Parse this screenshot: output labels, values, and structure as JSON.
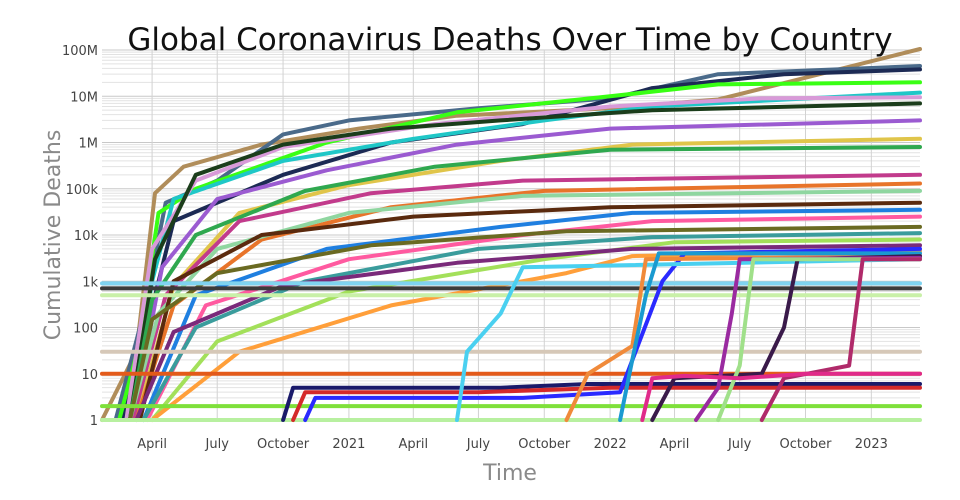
{
  "chart_data": {
    "type": "line",
    "title": "Global Coronavirus Deaths Over Time by Country",
    "xlabel": "Time",
    "ylabel": "Cumulative Deaths",
    "y_scale": "log",
    "ylim": [
      1,
      100000000
    ],
    "xlim": [
      "2020-01-22",
      "2023-03-10"
    ],
    "x_tick_labels": [
      "April",
      "July",
      "October",
      "2021",
      "April",
      "July",
      "October",
      "2022",
      "April",
      "July",
      "October",
      "2023"
    ],
    "x_tick_dates": [
      "2020-04-01",
      "2020-07-01",
      "2020-10-01",
      "2021-01-01",
      "2021-04-01",
      "2021-07-01",
      "2021-10-01",
      "2022-01-01",
      "2022-04-01",
      "2022-07-01",
      "2022-10-01",
      "2023-01-01"
    ],
    "y_tick_labels": [
      "1",
      "10",
      "100",
      "1k",
      "10k",
      "100k",
      "1M",
      "10M",
      "100M"
    ],
    "y_tick_values": [
      1,
      10,
      100,
      1000,
      10000,
      100000,
      1000000,
      10000000,
      100000000
    ],
    "grid": true,
    "legend": "none",
    "series": [
      {
        "color": "#b08d5a",
        "points": [
          [
            "2020-01-22",
            1
          ],
          [
            "2020-03-10",
            30
          ],
          [
            "2020-04-05",
            80000
          ],
          [
            "2020-05-15",
            300000
          ],
          [
            "2020-09-01",
            900000
          ],
          [
            "2021-01-15",
            2000000
          ],
          [
            "2021-06-01",
            3800000
          ],
          [
            "2022-01-01",
            5500000
          ],
          [
            "2022-06-01",
            8500000
          ],
          [
            "2023-03-10",
            105000000
          ]
        ]
      },
      {
        "color": "#4a6a8a",
        "points": [
          [
            "2020-02-10",
            1
          ],
          [
            "2020-03-20",
            200
          ],
          [
            "2020-04-20",
            50000
          ],
          [
            "2020-07-01",
            150000
          ],
          [
            "2020-10-01",
            1500000
          ],
          [
            "2021-01-01",
            3000000
          ],
          [
            "2021-07-01",
            5500000
          ],
          [
            "2022-01-01",
            9000000
          ],
          [
            "2022-06-01",
            30000000
          ],
          [
            "2023-03-10",
            45000000
          ]
        ]
      },
      {
        "color": "#1c2a54",
        "points": [
          [
            "2020-02-20",
            1
          ],
          [
            "2020-03-25",
            100
          ],
          [
            "2020-05-01",
            20000
          ],
          [
            "2020-10-01",
            200000
          ],
          [
            "2021-03-01",
            1000000
          ],
          [
            "2021-09-01",
            2500000
          ],
          [
            "2022-03-01",
            15000000
          ],
          [
            "2022-09-01",
            30000000
          ],
          [
            "2023-03-10",
            38000000
          ]
        ]
      },
      {
        "color": "#39ff14",
        "points": [
          [
            "2020-02-15",
            1
          ],
          [
            "2020-03-15",
            50
          ],
          [
            "2020-04-10",
            30000
          ],
          [
            "2020-06-01",
            100000
          ],
          [
            "2020-12-01",
            1000000
          ],
          [
            "2021-06-01",
            4500000
          ],
          [
            "2022-01-01",
            10000000
          ],
          [
            "2022-06-01",
            18000000
          ],
          [
            "2023-03-10",
            20000000
          ]
        ]
      },
      {
        "color": "#1fc7c7",
        "points": [
          [
            "2020-03-01",
            1
          ],
          [
            "2020-04-01",
            1000
          ],
          [
            "2020-05-01",
            60000
          ],
          [
            "2020-10-01",
            400000
          ],
          [
            "2021-04-01",
            1200000
          ],
          [
            "2021-10-01",
            3000000
          ],
          [
            "2022-03-01",
            6000000
          ],
          [
            "2023-03-10",
            12000000
          ]
        ]
      },
      {
        "color": "#d89ad8",
        "points": [
          [
            "2020-02-25",
            1
          ],
          [
            "2020-04-01",
            5000
          ],
          [
            "2020-06-01",
            150000
          ],
          [
            "2020-10-01",
            800000
          ],
          [
            "2021-05-01",
            2500000
          ],
          [
            "2022-01-01",
            6000000
          ],
          [
            "2022-08-01",
            9000000
          ],
          [
            "2023-03-10",
            9500000
          ]
        ]
      },
      {
        "color": "#1b3d1b",
        "points": [
          [
            "2020-03-01",
            1
          ],
          [
            "2020-04-05",
            3000
          ],
          [
            "2020-06-01",
            200000
          ],
          [
            "2020-10-01",
            900000
          ],
          [
            "2021-03-01",
            2000000
          ],
          [
            "2021-08-01",
            3000000
          ],
          [
            "2022-03-01",
            5000000
          ],
          [
            "2023-03-10",
            7000000
          ]
        ]
      },
      {
        "color": "#9b5bd1",
        "points": [
          [
            "2020-03-05",
            1
          ],
          [
            "2020-04-15",
            2000
          ],
          [
            "2020-07-01",
            60000
          ],
          [
            "2020-12-01",
            250000
          ],
          [
            "2021-06-01",
            900000
          ],
          [
            "2022-01-01",
            2000000
          ],
          [
            "2023-03-10",
            3000000
          ]
        ]
      },
      {
        "color": "#e0c54a",
        "points": [
          [
            "2020-03-10",
            1
          ],
          [
            "2020-05-01",
            800
          ],
          [
            "2020-08-01",
            30000
          ],
          [
            "2021-01-01",
            120000
          ],
          [
            "2021-08-01",
            400000
          ],
          [
            "2022-02-01",
            900000
          ],
          [
            "2023-03-10",
            1200000
          ]
        ]
      },
      {
        "color": "#2fa84f",
        "points": [
          [
            "2020-03-01",
            1
          ],
          [
            "2020-04-01",
            400
          ],
          [
            "2020-06-01",
            10000
          ],
          [
            "2020-11-01",
            90000
          ],
          [
            "2021-05-01",
            300000
          ],
          [
            "2022-01-01",
            700000
          ],
          [
            "2023-03-10",
            800000
          ]
        ]
      },
      {
        "color": "#c23b8c",
        "points": [
          [
            "2020-03-05",
            1
          ],
          [
            "2020-04-20",
            500
          ],
          [
            "2020-08-01",
            20000
          ],
          [
            "2021-02-01",
            80000
          ],
          [
            "2021-09-01",
            150000
          ],
          [
            "2023-03-10",
            200000
          ]
        ]
      },
      {
        "color": "#e8742a",
        "points": [
          [
            "2020-03-10",
            1
          ],
          [
            "2020-05-01",
            300
          ],
          [
            "2020-09-01",
            8000
          ],
          [
            "2021-03-01",
            40000
          ],
          [
            "2021-10-01",
            90000
          ],
          [
            "2023-03-10",
            130000
          ]
        ]
      },
      {
        "color": "#8fd6a0",
        "points": [
          [
            "2020-03-01",
            1
          ],
          [
            "2020-04-10",
            200
          ],
          [
            "2020-07-01",
            5000
          ],
          [
            "2021-01-01",
            30000
          ],
          [
            "2021-09-01",
            70000
          ],
          [
            "2023-03-10",
            90000
          ]
        ]
      },
      {
        "color": "#5a2a0e",
        "points": [
          [
            "2020-03-15",
            1
          ],
          [
            "2020-05-01",
            1000
          ],
          [
            "2020-09-01",
            10000
          ],
          [
            "2021-04-01",
            25000
          ],
          [
            "2022-01-01",
            40000
          ],
          [
            "2023-03-10",
            50000
          ]
        ]
      },
      {
        "color": "#1f7fe0",
        "points": [
          [
            "2020-03-20",
            1
          ],
          [
            "2020-06-01",
            500
          ],
          [
            "2020-12-01",
            5000
          ],
          [
            "2021-08-01",
            15000
          ],
          [
            "2022-02-01",
            30000
          ],
          [
            "2023-03-10",
            35000
          ]
        ]
      },
      {
        "color": "#ff5aa0",
        "points": [
          [
            "2020-03-25",
            1
          ],
          [
            "2020-06-15",
            300
          ],
          [
            "2021-01-01",
            3000
          ],
          [
            "2021-09-01",
            10000
          ],
          [
            "2022-03-01",
            20000
          ],
          [
            "2023-03-10",
            25000
          ]
        ]
      },
      {
        "color": "#6a6a22",
        "points": [
          [
            "2020-03-01",
            1
          ],
          [
            "2020-04-01",
            150
          ],
          [
            "2020-07-01",
            1500
          ],
          [
            "2021-02-01",
            6000
          ],
          [
            "2021-11-01",
            12000
          ],
          [
            "2023-03-10",
            15000
          ]
        ]
      },
      {
        "color": "#3a9c9c",
        "points": [
          [
            "2020-03-20",
            1
          ],
          [
            "2020-06-01",
            100
          ],
          [
            "2020-11-01",
            1000
          ],
          [
            "2021-07-01",
            5000
          ],
          [
            "2022-03-01",
            9000
          ],
          [
            "2023-03-10",
            11000
          ]
        ]
      },
      {
        "color": "#a3e05a",
        "points": [
          [
            "2020-04-01",
            1
          ],
          [
            "2020-07-01",
            50
          ],
          [
            "2021-01-01",
            600
          ],
          [
            "2021-10-01",
            3000
          ],
          [
            "2022-04-01",
            7000
          ],
          [
            "2023-03-10",
            8000
          ]
        ]
      },
      {
        "color": "#7a2a7a",
        "points": [
          [
            "2020-03-10",
            1
          ],
          [
            "2020-05-01",
            80
          ],
          [
            "2020-10-01",
            800
          ],
          [
            "2021-06-01",
            2500
          ],
          [
            "2022-02-01",
            5000
          ],
          [
            "2023-03-10",
            6000
          ]
        ]
      },
      {
        "color": "#ff9f3a",
        "points": [
          [
            "2020-04-01",
            1
          ],
          [
            "2020-08-01",
            30
          ],
          [
            "2021-03-01",
            300
          ],
          [
            "2021-11-01",
            1500
          ],
          [
            "2022-02-01",
            3500
          ],
          [
            "2023-03-10",
            4500
          ]
        ]
      },
      {
        "color": "#3b3b3b",
        "points": [
          [
            "2020-01-22",
            700
          ],
          [
            "2023-03-10",
            700
          ]
        ]
      },
      {
        "color": "#7fd3f0",
        "points": [
          [
            "2020-01-22",
            900
          ],
          [
            "2023-03-10",
            900
          ]
        ]
      },
      {
        "color": "#c9f0a8",
        "points": [
          [
            "2020-01-22",
            500
          ],
          [
            "2023-03-10",
            500
          ]
        ]
      },
      {
        "color": "#d6c8b8",
        "points": [
          [
            "2020-01-22",
            30
          ],
          [
            "2023-03-10",
            30
          ]
        ]
      },
      {
        "color": "#e35a1a",
        "points": [
          [
            "2020-01-22",
            10
          ],
          [
            "2023-03-10",
            10
          ]
        ]
      },
      {
        "color": "#7ee03a",
        "points": [
          [
            "2020-01-22",
            2
          ],
          [
            "2023-03-10",
            2
          ]
        ]
      },
      {
        "color": "#b8f0a0",
        "points": [
          [
            "2020-01-22",
            1
          ],
          [
            "2023-03-10",
            1
          ]
        ]
      },
      {
        "color": "#1a1a6a",
        "points": [
          [
            "2020-10-01",
            1
          ],
          [
            "2020-10-15",
            5
          ],
          [
            "2021-08-01",
            5
          ],
          [
            "2021-12-01",
            6
          ],
          [
            "2023-03-10",
            6
          ]
        ]
      },
      {
        "color": "#d42a2a",
        "points": [
          [
            "2020-10-15",
            1
          ],
          [
            "2020-11-01",
            4
          ],
          [
            "2021-07-01",
            4
          ],
          [
            "2022-01-01",
            5
          ],
          [
            "2023-03-10",
            5
          ]
        ]
      },
      {
        "color": "#2a2aff",
        "points": [
          [
            "2020-11-01",
            1
          ],
          [
            "2020-11-15",
            3
          ],
          [
            "2021-09-01",
            3
          ],
          [
            "2022-01-15",
            4
          ],
          [
            "2022-03-15",
            1000
          ],
          [
            "2022-04-15",
            4000
          ],
          [
            "2023-03-10",
            5000
          ]
        ]
      },
      {
        "color": "#4ad0f0",
        "points": [
          [
            "2021-06-01",
            1
          ],
          [
            "2021-06-15",
            30
          ],
          [
            "2021-08-01",
            200
          ],
          [
            "2021-09-01",
            2000
          ],
          [
            "2023-03-10",
            3000
          ]
        ]
      },
      {
        "color": "#f08a3a",
        "points": [
          [
            "2021-11-01",
            1
          ],
          [
            "2021-12-01",
            10
          ],
          [
            "2022-02-01",
            40
          ],
          [
            "2022-02-20",
            3000
          ],
          [
            "2023-03-10",
            3500
          ]
        ]
      },
      {
        "color": "#1a9ad0",
        "points": [
          [
            "2022-01-15",
            1
          ],
          [
            "2022-02-01",
            20
          ],
          [
            "2022-02-20",
            500
          ],
          [
            "2022-03-10",
            4000
          ],
          [
            "2023-03-10",
            4000
          ]
        ]
      },
      {
        "color": "#3a1a4a",
        "points": [
          [
            "2022-03-01",
            1
          ],
          [
            "2022-04-01",
            8
          ],
          [
            "2022-08-01",
            10
          ],
          [
            "2022-09-01",
            100
          ],
          [
            "2022-09-20",
            3000
          ],
          [
            "2023-03-10",
            3500
          ]
        ]
      },
      {
        "color": "#9a2aa0",
        "points": [
          [
            "2022-05-01",
            1
          ],
          [
            "2022-06-01",
            5
          ],
          [
            "2022-06-20",
            200
          ],
          [
            "2022-07-01",
            3000
          ],
          [
            "2023-03-10",
            3200
          ]
        ]
      },
      {
        "color": "#a0e08a",
        "points": [
          [
            "2022-06-01",
            1
          ],
          [
            "2022-07-01",
            15
          ],
          [
            "2022-07-20",
            3000
          ],
          [
            "2023-03-10",
            3000
          ]
        ]
      },
      {
        "color": "#b02a6a",
        "points": [
          [
            "2022-08-01",
            1
          ],
          [
            "2022-09-01",
            8
          ],
          [
            "2022-12-01",
            15
          ],
          [
            "2022-12-20",
            3000
          ],
          [
            "2023-03-10",
            3000
          ]
        ]
      },
      {
        "color": "#e02a8a",
        "points": [
          [
            "2022-02-15",
            1
          ],
          [
            "2022-03-01",
            8
          ],
          [
            "2022-04-15",
            9
          ],
          [
            "2022-07-01",
            8
          ],
          [
            "2022-10-01",
            10
          ],
          [
            "2023-03-10",
            10
          ]
        ]
      }
    ]
  }
}
